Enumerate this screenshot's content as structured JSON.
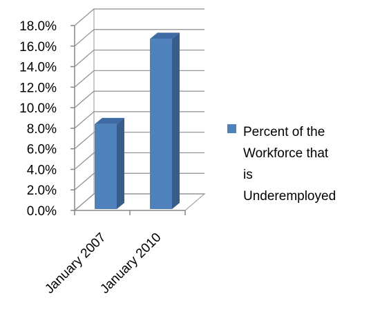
{
  "chart_data": {
    "type": "bar",
    "style": "3d-column",
    "categories": [
      "January 2007",
      "January 2010"
    ],
    "series": [
      {
        "name": "Percent of the Workforce that is Underemployed",
        "values": [
          8.4,
          16.7
        ],
        "color": "#4F81BD"
      }
    ],
    "ylim": [
      0,
      18
    ],
    "ytick_step": 2,
    "ytick_labels": [
      "0.0%",
      "2.0%",
      "4.0%",
      "6.0%",
      "8.0%",
      "10.0%",
      "12.0%",
      "14.0%",
      "16.0%",
      "18.0%"
    ],
    "grid": true,
    "legend": {
      "position": "right",
      "lines": [
        "Percent of the",
        "Workforce that",
        "is",
        "Underemployed"
      ]
    }
  }
}
